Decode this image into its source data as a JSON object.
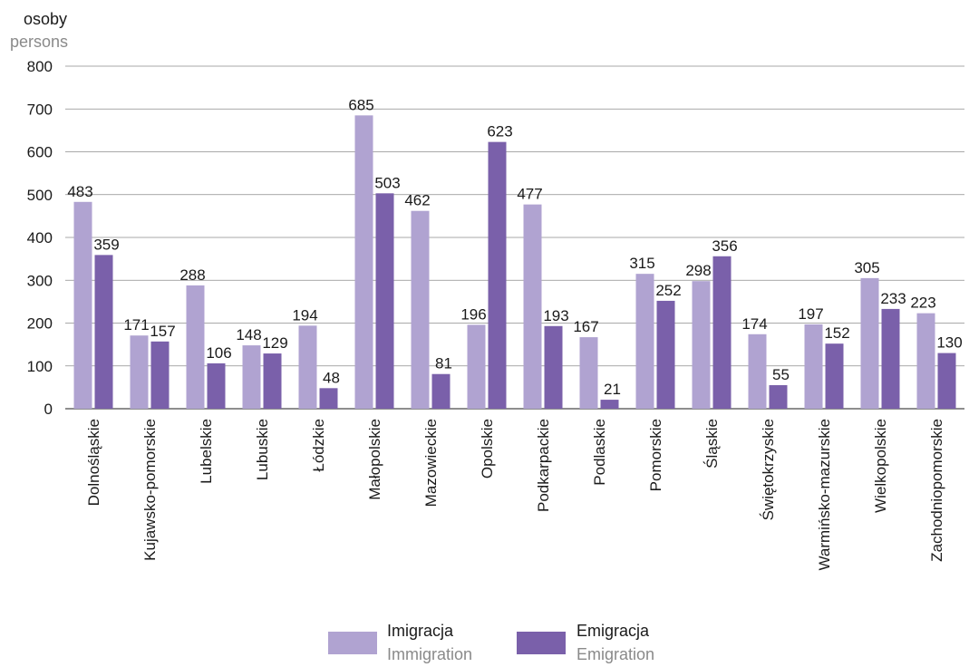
{
  "chart_data": {
    "type": "bar",
    "ylabel": "osoby",
    "ylabel_en": "persons",
    "ylim": [
      0,
      800
    ],
    "yticks": [
      0,
      100,
      200,
      300,
      400,
      500,
      600,
      700,
      800
    ],
    "grid": true,
    "legend_position": "bottom-center",
    "categories": [
      "Dolnośląskie",
      "Kujawsko-pomorskie",
      "Lubelskie",
      "Lubuskie",
      "Łódzkie",
      "Małopolskie",
      "Mazowieckie",
      "Opolskie",
      "Podkarpackie",
      "Podlaskie",
      "Pomorskie",
      "Śląskie",
      "Świętokrzyskie",
      "Warmińsko-mazurskie",
      "Wielkopolskie",
      "Zachodniopomorskie"
    ],
    "series": [
      {
        "name": "Imigracja",
        "name_en": "Immigration",
        "color": "#b0a3d1",
        "values": [
          483,
          171,
          288,
          148,
          194,
          685,
          462,
          196,
          477,
          167,
          315,
          298,
          174,
          197,
          305,
          223
        ]
      },
      {
        "name": "Emigracja",
        "name_en": "Emigration",
        "color": "#7a60aa",
        "values": [
          359,
          157,
          106,
          129,
          48,
          503,
          81,
          623,
          193,
          21,
          252,
          356,
          55,
          152,
          233,
          130
        ]
      }
    ]
  }
}
